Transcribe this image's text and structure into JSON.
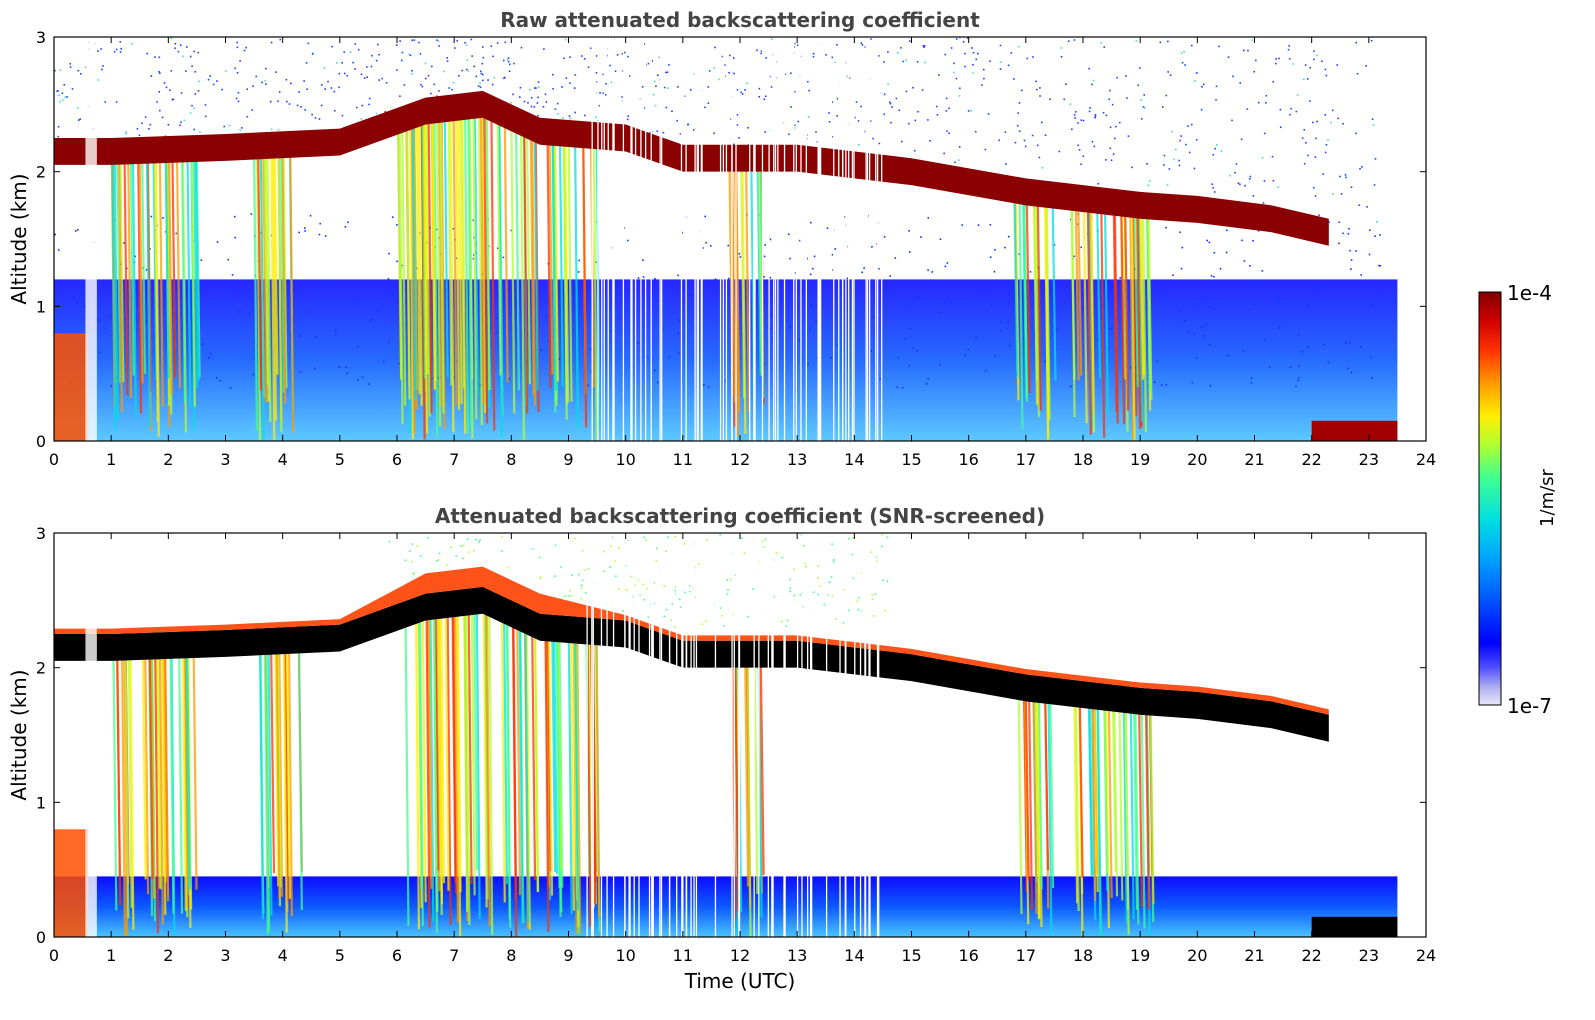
{
  "chart_data": [
    {
      "type": "heatmap",
      "title": "Raw attenuated backscattering coefficient",
      "xlabel": "",
      "ylabel": "Altitude (km)",
      "xlim": [
        0,
        24
      ],
      "ylim": [
        0,
        3
      ],
      "xticks": [
        "0",
        "1",
        "2",
        "3",
        "4",
        "5",
        "6",
        "7",
        "8",
        "9",
        "10",
        "11",
        "12",
        "13",
        "14",
        "15",
        "16",
        "17",
        "18",
        "19",
        "20",
        "21",
        "22",
        "23",
        "24"
      ],
      "yticks": [
        "0",
        "1",
        "2",
        "3"
      ],
      "cloud_layer_km": [
        [
          0.0,
          2.15
        ],
        [
          1.0,
          2.15
        ],
        [
          3.0,
          2.18
        ],
        [
          5.0,
          2.22
        ],
        [
          6.5,
          2.45
        ],
        [
          7.5,
          2.5
        ],
        [
          8.5,
          2.3
        ],
        [
          10.0,
          2.25
        ],
        [
          11.0,
          2.1
        ],
        [
          13.0,
          2.1
        ],
        [
          15.0,
          2.0
        ],
        [
          17.0,
          1.85
        ],
        [
          19.0,
          1.75
        ],
        [
          20.0,
          1.72
        ],
        [
          21.3,
          1.65
        ],
        [
          22.3,
          1.55
        ]
      ],
      "precip_spans_utc": [
        [
          1.0,
          2.5
        ],
        [
          3.5,
          4.3
        ],
        [
          6.0,
          9.5
        ],
        [
          11.8,
          12.4
        ],
        [
          16.8,
          17.5
        ],
        [
          17.8,
          19.2
        ]
      ],
      "near_surface_layer": {
        "start_utc": 22.0,
        "end_utc": 23.5,
        "altitude_km": 0.1
      }
    },
    {
      "type": "heatmap",
      "title": "Attenuated backscattering coefficient (SNR-screened)",
      "xlabel": "Time (UTC)",
      "ylabel": "Altitude (km)",
      "xlim": [
        0,
        24
      ],
      "ylim": [
        0,
        3
      ],
      "xticks": [
        "0",
        "1",
        "2",
        "3",
        "4",
        "5",
        "6",
        "7",
        "8",
        "9",
        "10",
        "11",
        "12",
        "13",
        "14",
        "15",
        "16",
        "17",
        "18",
        "19",
        "20",
        "21",
        "22",
        "23",
        "24"
      ],
      "yticks": [
        "0",
        "1",
        "2",
        "3"
      ]
    }
  ],
  "colorbar": {
    "label": "1/m/sr",
    "max_label": "1e-4",
    "min_label": "1e-7",
    "colors": [
      "#e8e8f8",
      "#b4b4f0",
      "#5050ff",
      "#0000ff",
      "#0050ff",
      "#00a0ff",
      "#00e0e0",
      "#40ff90",
      "#b0ff30",
      "#ffee00",
      "#ff9900",
      "#ff3000",
      "#d00000",
      "#800000"
    ]
  }
}
